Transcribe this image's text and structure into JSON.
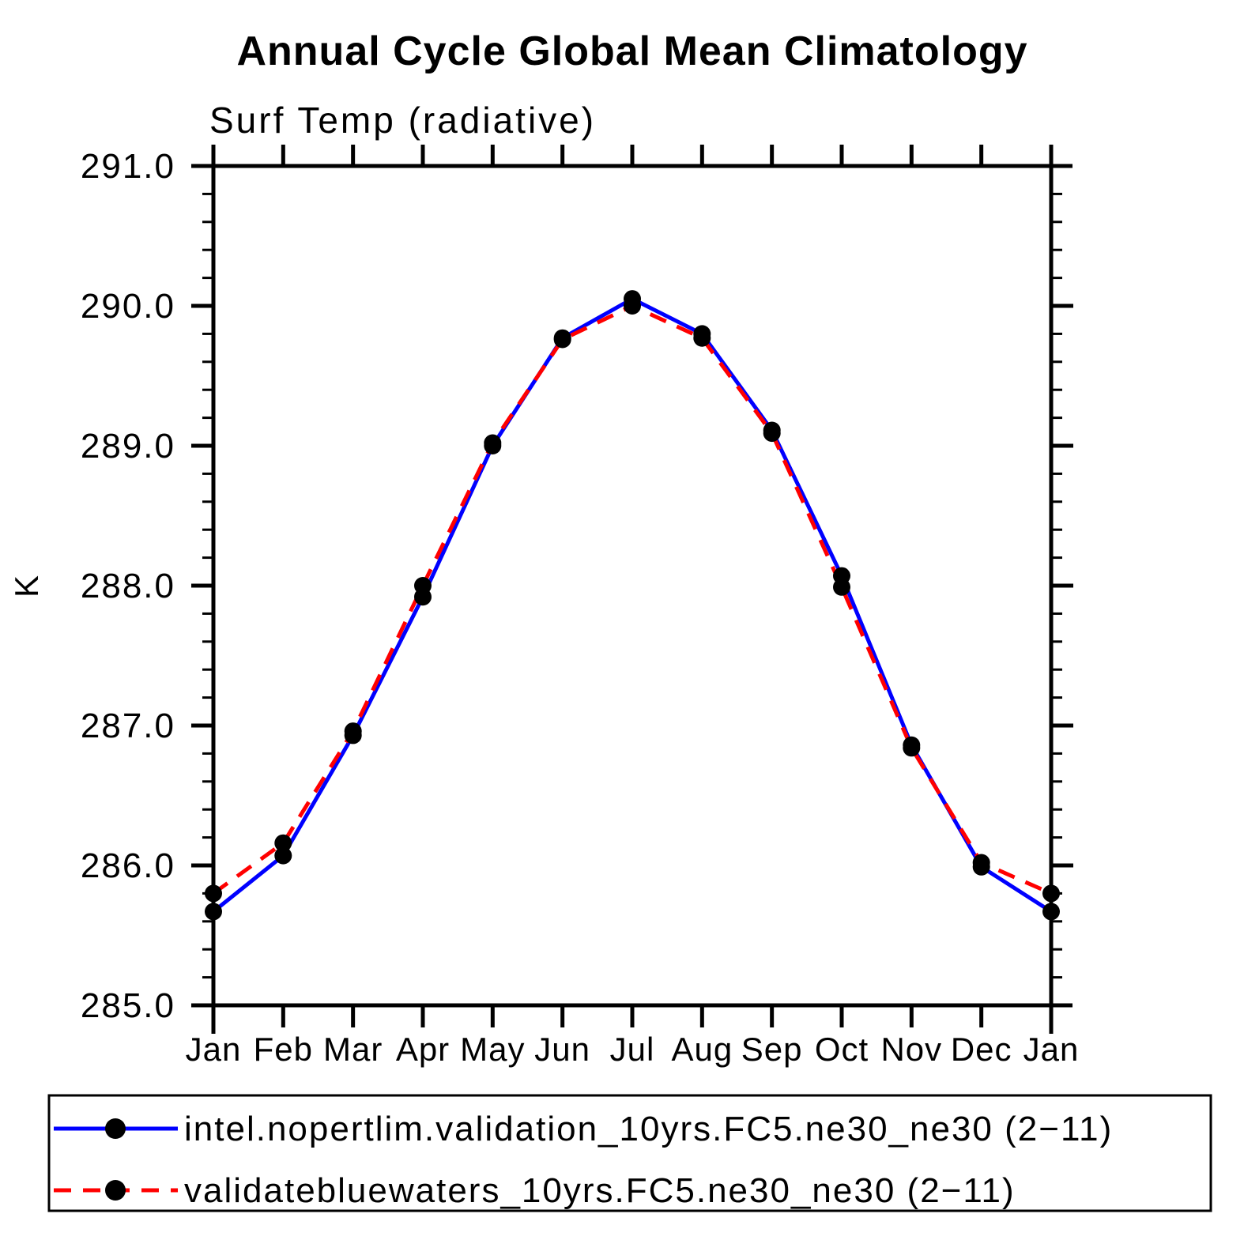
{
  "title": "Annual Cycle Global Mean Climatology",
  "subtitle": "Surf Temp (radiative)",
  "y_axis_label": "K",
  "chart_data": {
    "type": "line",
    "title": "Annual Cycle Global Mean Climatology",
    "subtitle": "Surf Temp (radiative)",
    "xlabel": "",
    "ylabel": "K",
    "ylim": [
      285.0,
      291.0
    ],
    "y_major_tick_step": 1.0,
    "y_minor_tick_step": 0.2,
    "y_tick_labels": [
      "285.0",
      "286.0",
      "287.0",
      "288.0",
      "289.0",
      "290.0",
      "291.0"
    ],
    "categories": [
      "Jan",
      "Feb",
      "Mar",
      "Apr",
      "May",
      "Jun",
      "Jul",
      "Aug",
      "Sep",
      "Oct",
      "Nov",
      "Dec",
      "Jan"
    ],
    "series": [
      {
        "name": "intel.nopertlim.validation_10yrs.FC5.ne30_ne30 (2−11)",
        "line_color": "#0000ff",
        "line_style": "solid",
        "marker": "filled-circle",
        "marker_color": "#000000",
        "values": [
          285.67,
          286.07,
          286.93,
          287.92,
          289.0,
          289.77,
          290.05,
          289.8,
          289.11,
          288.07,
          286.86,
          285.99,
          285.67
        ]
      },
      {
        "name": "validatebluewaters_10yrs.FC5.ne30_ne30 (2−11)",
        "line_color": "#ff0000",
        "line_style": "dashed",
        "marker": "filled-circle",
        "marker_color": "#000000",
        "values": [
          285.8,
          286.16,
          286.96,
          288.0,
          289.02,
          289.76,
          290.0,
          289.77,
          289.09,
          287.99,
          286.84,
          286.02,
          285.8
        ]
      }
    ],
    "legend_position": "bottom",
    "grid": false,
    "background_color": "#ffffff",
    "axis_color": "#000000"
  }
}
